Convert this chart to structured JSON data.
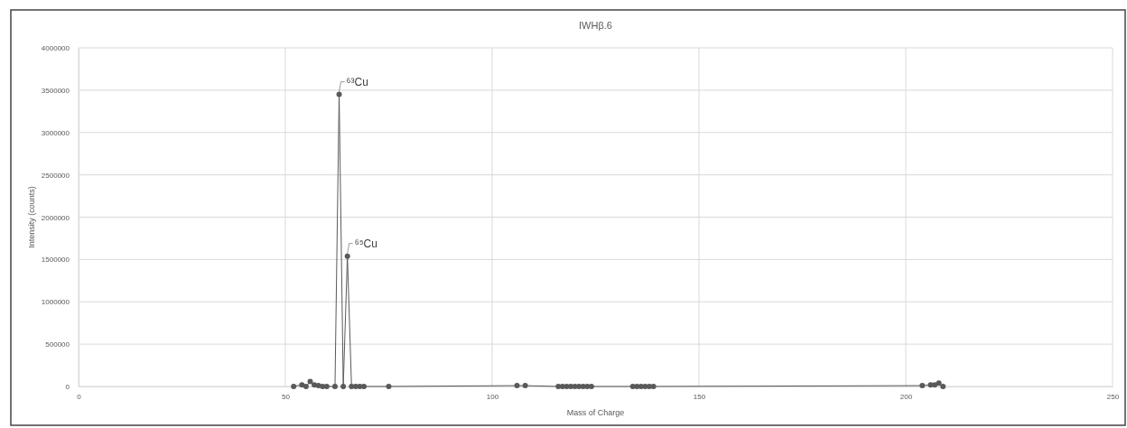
{
  "chart_data": {
    "type": "line",
    "title": "IWHβ.6",
    "xlabel": "Mass of Charge",
    "ylabel": "Intensity (counts)",
    "x": [
      52,
      54,
      55,
      56,
      57,
      58,
      59,
      60,
      62,
      63,
      64,
      65,
      66,
      67,
      68,
      69,
      75,
      106,
      108,
      116,
      117,
      118,
      119,
      120,
      121,
      122,
      123,
      124,
      134,
      135,
      136,
      137,
      138,
      139,
      204,
      206,
      207,
      208,
      209
    ],
    "series": [
      {
        "color": "#595959",
        "values": [
          0,
          20000,
          0,
          60000,
          20000,
          10000,
          0,
          0,
          0,
          3450000,
          0,
          1540000,
          0,
          0,
          0,
          0,
          0,
          10000,
          10000,
          0,
          0,
          0,
          0,
          0,
          0,
          0,
          0,
          0,
          0,
          0,
          0,
          0,
          0,
          0,
          10000,
          20000,
          20000,
          40000,
          0
        ]
      }
    ],
    "xlim": [
      0,
      250
    ],
    "xticks": [
      0,
      50,
      100,
      150,
      200,
      250
    ],
    "ylim": [
      0,
      4000000
    ],
    "yticks": [
      0,
      500000,
      1000000,
      1500000,
      2000000,
      2500000,
      3000000,
      3500000,
      4000000
    ],
    "grid": true,
    "marker": "circle",
    "line_style": "solid",
    "annotations": [
      {
        "text": "⁶³Cu",
        "x": 63,
        "y": 3450000
      },
      {
        "text": "⁶⁵Cu",
        "x": 65,
        "y": 1540000
      }
    ]
  }
}
